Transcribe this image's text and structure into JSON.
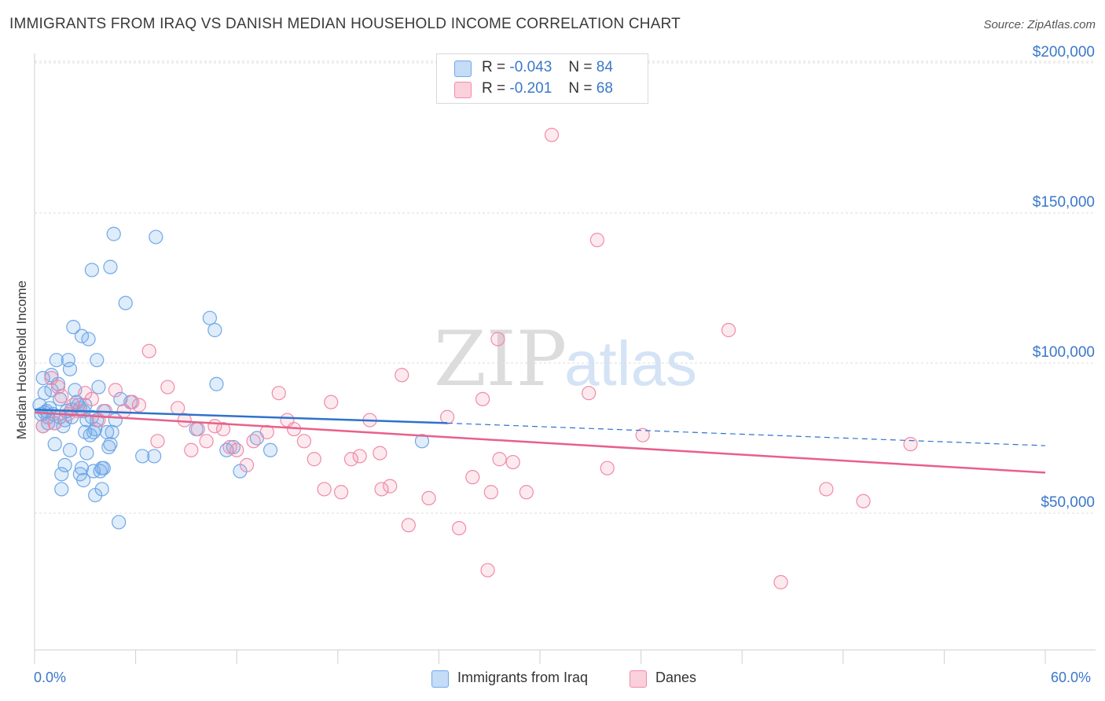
{
  "title": "IMMIGRANTS FROM IRAQ VS DANISH MEDIAN HOUSEHOLD INCOME CORRELATION CHART",
  "source": "Source: ZipAtlas.com",
  "watermark": {
    "zip": "ZIP",
    "atlas": "atlas"
  },
  "legend_top": [
    {
      "r_label": "R =",
      "r_value": "-0.043",
      "n_label": "N =",
      "n_value": "84"
    },
    {
      "r_label": "R =",
      "r_value": "-0.201",
      "n_label": "N =",
      "n_value": "68"
    }
  ],
  "chart_data": {
    "type": "scatter",
    "title": "IMMIGRANTS FROM IRAQ VS DANISH MEDIAN HOUSEHOLD INCOME CORRELATION CHART",
    "xlabel": "",
    "ylabel": "Median Household Income",
    "xlim": [
      0,
      60
    ],
    "ylim": [
      0,
      210000
    ],
    "x_tick_labels": [
      "0.0%",
      "60.0%"
    ],
    "y_ticks": [
      {
        "value": 50000,
        "label": "$50,000"
      },
      {
        "value": 100000,
        "label": "$100,000"
      },
      {
        "value": 150000,
        "label": "$150,000"
      },
      {
        "value": 200000,
        "label": "$200,000"
      }
    ],
    "grid": true,
    "legend_position": "bottom",
    "series": [
      {
        "name": "Immigrants from Iraq",
        "color": "#6fa8e8",
        "line_color": "#2f72cc",
        "trend": {
          "x0": 0,
          "y0": 84500,
          "x1": 24.5,
          "y1": 80000,
          "dashed_to_x": 60,
          "dashed_to_y": 72500
        },
        "points": [
          [
            0.3,
            86000
          ],
          [
            0.4,
            83000
          ],
          [
            0.5,
            79000
          ],
          [
            0.5,
            95000
          ],
          [
            0.6,
            90000
          ],
          [
            0.7,
            84000
          ],
          [
            0.8,
            82000
          ],
          [
            0.9,
            85000
          ],
          [
            1.0,
            91000
          ],
          [
            1.1,
            83000
          ],
          [
            1.2,
            80000
          ],
          [
            1.2,
            73000
          ],
          [
            1.3,
            101000
          ],
          [
            1.4,
            93000
          ],
          [
            1.5,
            88000
          ],
          [
            1.6,
            63000
          ],
          [
            1.6,
            58000
          ],
          [
            1.7,
            79000
          ],
          [
            1.8,
            66000
          ],
          [
            1.9,
            84000
          ],
          [
            2.0,
            101000
          ],
          [
            2.1,
            98000
          ],
          [
            2.1,
            71000
          ],
          [
            2.2,
            82000
          ],
          [
            2.3,
            112000
          ],
          [
            2.4,
            91000
          ],
          [
            2.5,
            87000
          ],
          [
            2.6,
            86000
          ],
          [
            2.7,
            63000
          ],
          [
            2.7,
            85000
          ],
          [
            2.8,
            109000
          ],
          [
            2.8,
            65000
          ],
          [
            2.9,
            61000
          ],
          [
            3.0,
            77000
          ],
          [
            3.1,
            81000
          ],
          [
            3.1,
            70000
          ],
          [
            3.2,
            108000
          ],
          [
            3.3,
            76000
          ],
          [
            3.4,
            82000
          ],
          [
            3.4,
            131000
          ],
          [
            3.5,
            77000
          ],
          [
            3.5,
            64000
          ],
          [
            3.6,
            56000
          ],
          [
            3.7,
            81000
          ],
          [
            3.7,
            101000
          ],
          [
            3.8,
            92000
          ],
          [
            3.9,
            64000
          ],
          [
            4.0,
            65000
          ],
          [
            4.0,
            58000
          ],
          [
            4.1,
            65000
          ],
          [
            4.3,
            77000
          ],
          [
            4.4,
            72000
          ],
          [
            4.5,
            132000
          ],
          [
            4.5,
            73000
          ],
          [
            4.6,
            77000
          ],
          [
            4.7,
            143000
          ],
          [
            4.8,
            81000
          ],
          [
            5.0,
            47000
          ],
          [
            5.1,
            88000
          ],
          [
            5.4,
            120000
          ],
          [
            5.7,
            87000
          ],
          [
            6.4,
            69000
          ],
          [
            7.1,
            69000
          ],
          [
            7.2,
            142000
          ],
          [
            9.6,
            78000
          ],
          [
            10.4,
            115000
          ],
          [
            10.7,
            111000
          ],
          [
            10.8,
            93000
          ],
          [
            11.4,
            71000
          ],
          [
            11.8,
            72000
          ],
          [
            12.2,
            64000
          ],
          [
            13.2,
            75000
          ],
          [
            14.0,
            71000
          ],
          [
            23.0,
            74000
          ],
          [
            2.2,
            84500
          ],
          [
            1.0,
            96000
          ],
          [
            3.0,
            86000
          ],
          [
            0.8,
            80000
          ],
          [
            1.5,
            82000
          ],
          [
            2.9,
            84000
          ],
          [
            0.6,
            83500
          ],
          [
            4.1,
            84000
          ],
          [
            1.8,
            81000
          ],
          [
            3.6,
            78000
          ]
        ]
      },
      {
        "name": "Danes",
        "color": "#f08aa8",
        "line_color": "#e8608a",
        "trend": {
          "x0": 0,
          "y0": 83500,
          "x1": 60,
          "y1": 63500
        },
        "points": [
          [
            0.5,
            79000
          ],
          [
            1.0,
            95000
          ],
          [
            1.2,
            80000
          ],
          [
            1.4,
            92000
          ],
          [
            1.6,
            89000
          ],
          [
            2.0,
            83000
          ],
          [
            2.3,
            86000
          ],
          [
            2.6,
            84000
          ],
          [
            3.0,
            90000
          ],
          [
            3.4,
            88000
          ],
          [
            3.8,
            81000
          ],
          [
            4.2,
            84000
          ],
          [
            4.8,
            91000
          ],
          [
            5.3,
            84000
          ],
          [
            5.8,
            87000
          ],
          [
            6.2,
            86000
          ],
          [
            6.8,
            104000
          ],
          [
            7.3,
            74000
          ],
          [
            7.9,
            92000
          ],
          [
            8.5,
            85000
          ],
          [
            8.9,
            81000
          ],
          [
            9.3,
            71000
          ],
          [
            9.7,
            78000
          ],
          [
            10.2,
            74000
          ],
          [
            10.7,
            79000
          ],
          [
            11.2,
            78000
          ],
          [
            11.6,
            72000
          ],
          [
            12.0,
            71000
          ],
          [
            12.6,
            66000
          ],
          [
            13.0,
            74000
          ],
          [
            13.8,
            77000
          ],
          [
            14.5,
            90000
          ],
          [
            15.0,
            81000
          ],
          [
            15.4,
            78000
          ],
          [
            16.0,
            74000
          ],
          [
            16.6,
            68000
          ],
          [
            17.2,
            58000
          ],
          [
            17.6,
            87000
          ],
          [
            18.2,
            57000
          ],
          [
            18.8,
            68000
          ],
          [
            19.3,
            69000
          ],
          [
            19.9,
            81000
          ],
          [
            20.5,
            70000
          ],
          [
            20.6,
            58000
          ],
          [
            21.1,
            59000
          ],
          [
            21.8,
            96000
          ],
          [
            22.2,
            46000
          ],
          [
            23.4,
            55000
          ],
          [
            24.5,
            82000
          ],
          [
            25.2,
            45000
          ],
          [
            26.0,
            62000
          ],
          [
            26.6,
            88000
          ],
          [
            27.1,
            57000
          ],
          [
            27.5,
            108000
          ],
          [
            27.6,
            68000
          ],
          [
            28.4,
            67000
          ],
          [
            29.2,
            57000
          ],
          [
            30.7,
            176000
          ],
          [
            32.9,
            90000
          ],
          [
            33.4,
            141000
          ],
          [
            34.0,
            65000
          ],
          [
            36.1,
            76000
          ],
          [
            41.2,
            111000
          ],
          [
            44.3,
            27000
          ],
          [
            47.0,
            58000
          ],
          [
            49.2,
            54000
          ],
          [
            52.0,
            73000
          ],
          [
            26.9,
            31000
          ]
        ]
      }
    ]
  }
}
